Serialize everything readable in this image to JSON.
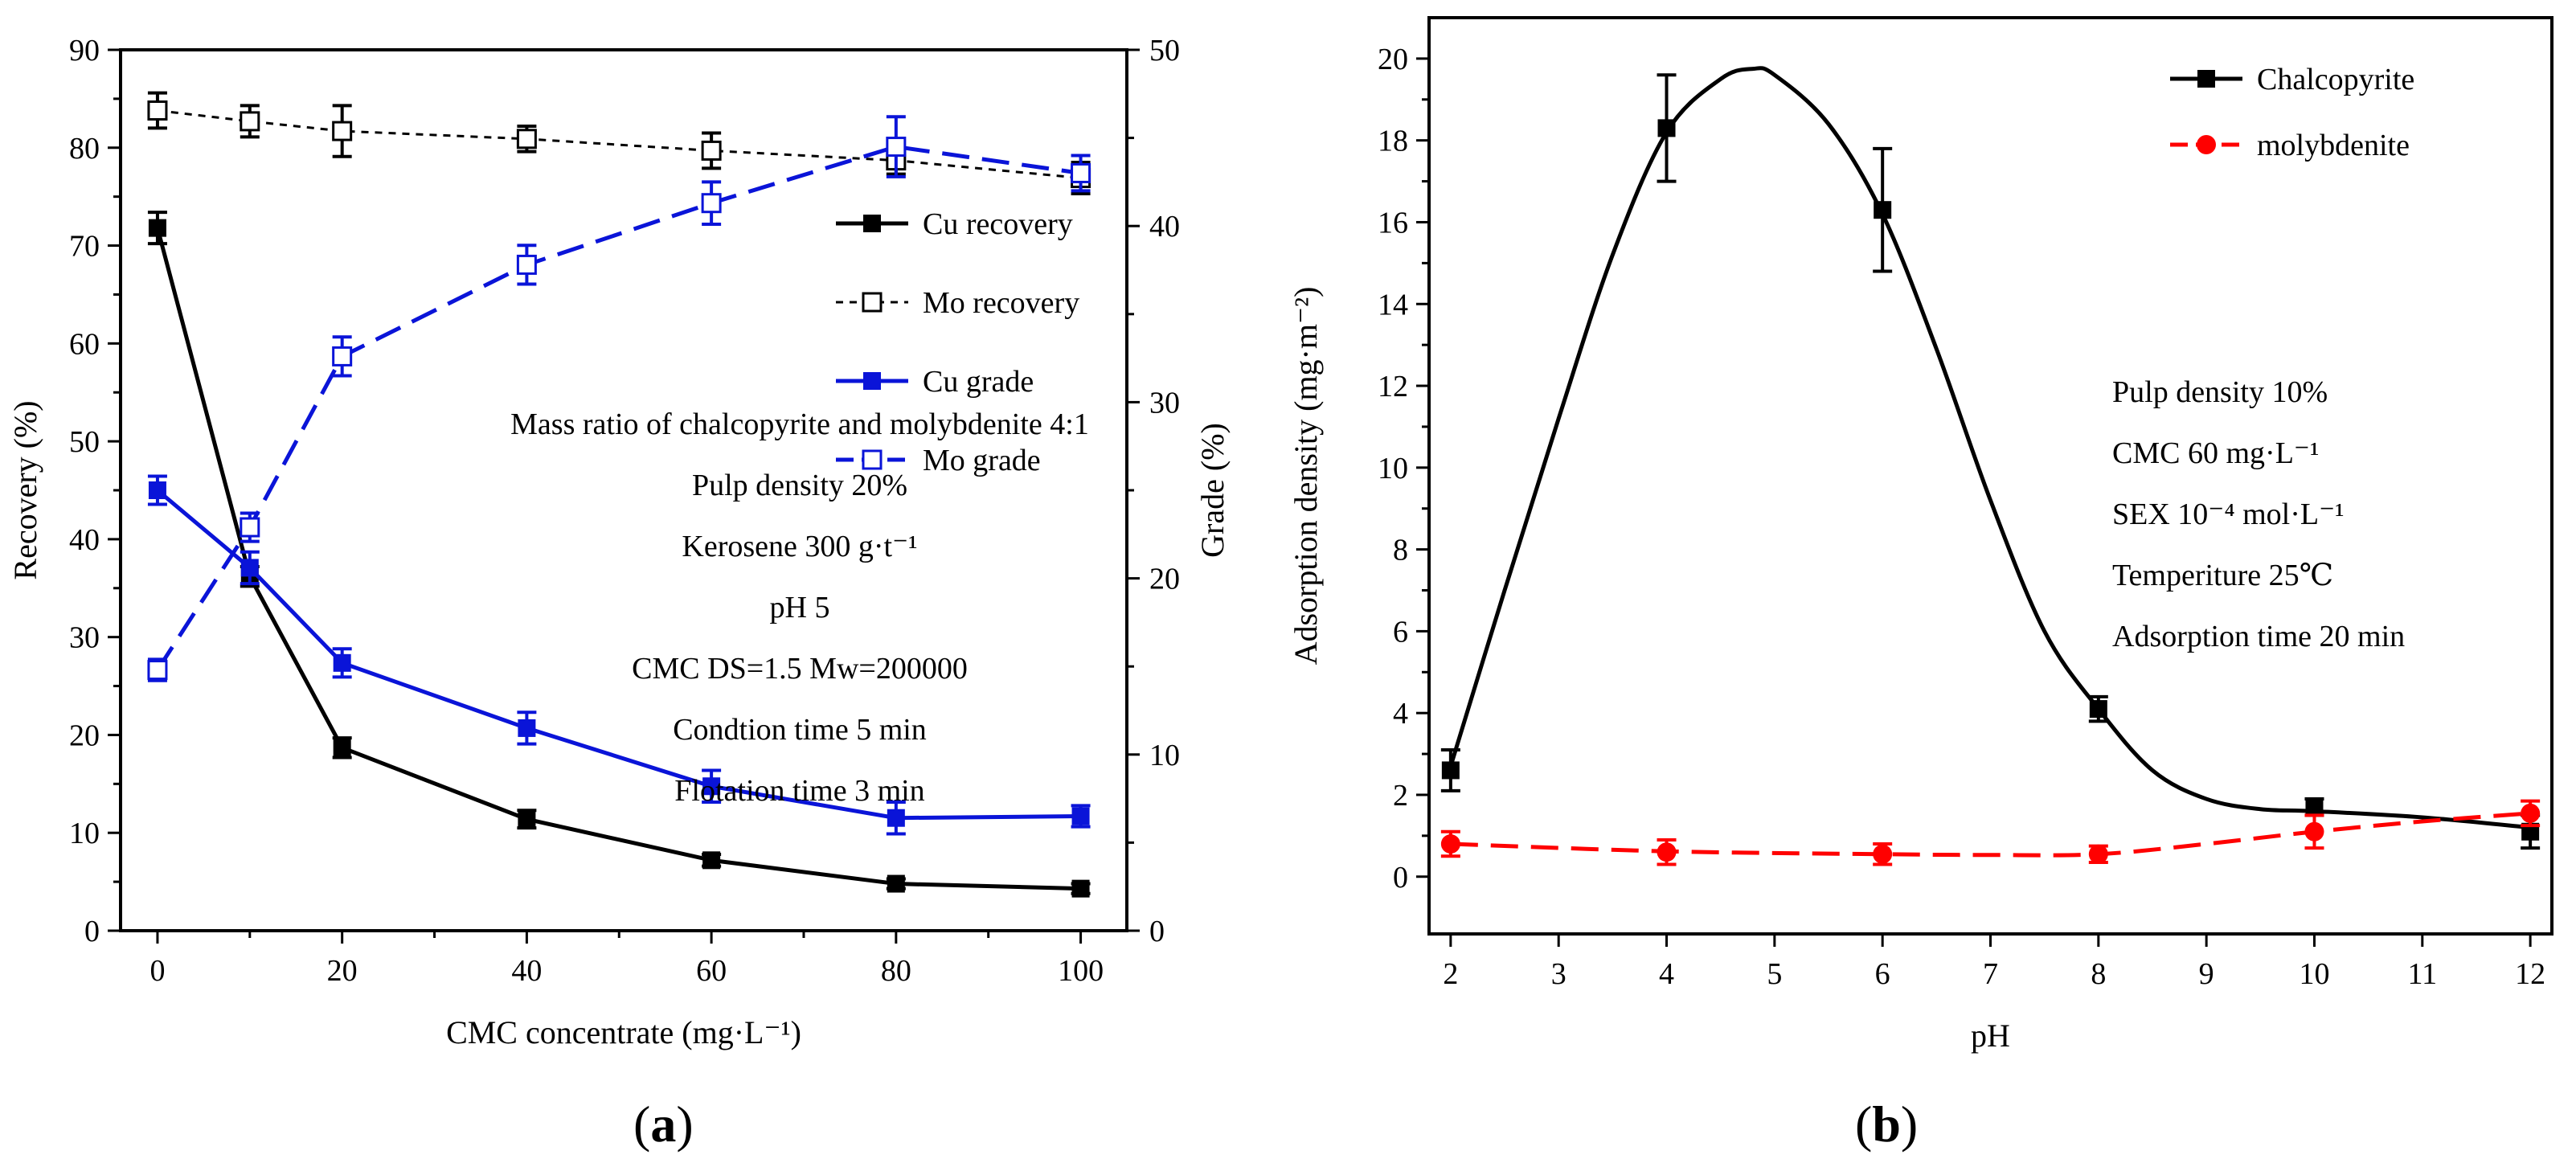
{
  "chart_data": [
    {
      "panel": "a",
      "type": "line",
      "panel_label": "a",
      "xlabel": "CMC concentrate (mg·L⁻¹)",
      "ylabel": "Recovery (%)",
      "y2label": "Grade (%)",
      "xlim": [
        -4,
        105
      ],
      "ylim": [
        0,
        90
      ],
      "y2lim": [
        0,
        50
      ],
      "xticks": [
        0,
        20,
        40,
        60,
        80,
        100
      ],
      "yticks": [
        0,
        10,
        20,
        30,
        40,
        50,
        60,
        70,
        80,
        90
      ],
      "y2ticks": [
        0,
        10,
        20,
        30,
        40,
        50
      ],
      "x": [
        0,
        10,
        20,
        40,
        60,
        80,
        100
      ],
      "series": [
        {
          "name": "Cu recovery",
          "axis": "left",
          "color": "#000000",
          "style": "solid",
          "marker": "filled-square",
          "values": [
            71.8,
            36.2,
            18.7,
            11.4,
            7.2,
            4.8,
            4.3
          ],
          "errors": [
            1.6,
            1.0,
            1.0,
            0.9,
            0.6,
            0.5,
            0.5
          ]
        },
        {
          "name": "Mo recovery",
          "axis": "left",
          "color": "#000000",
          "style": "dotted",
          "marker": "open-square",
          "values": [
            83.8,
            82.7,
            81.7,
            80.9,
            79.7,
            78.7,
            76.9
          ],
          "errors": [
            1.8,
            1.6,
            2.6,
            1.3,
            1.8,
            1.4,
            1.6
          ]
        },
        {
          "name": "Cu grade",
          "axis": "right",
          "color": "#0a14d8",
          "style": "solid",
          "marker": "filled-square",
          "values": [
            25.0,
            20.6,
            15.2,
            11.5,
            8.2,
            6.4,
            6.5
          ],
          "errors": [
            0.8,
            0.9,
            0.8,
            0.9,
            0.9,
            0.9,
            0.6
          ]
        },
        {
          "name": "Mo grade",
          "axis": "right",
          "color": "#0a14d8",
          "style": "dashed",
          "marker": "open-square",
          "values": [
            14.8,
            22.9,
            32.6,
            37.8,
            41.3,
            44.5,
            43.0
          ],
          "errors": [
            0.6,
            0.8,
            1.1,
            1.1,
            1.2,
            1.7,
            1.0
          ]
        }
      ],
      "legend_position": "right",
      "annotations": [
        "Mass ratio of chalcopyrite and molybdenite 4:1",
        "Pulp density 20%",
        "Kerosene 300 g·t⁻¹",
        "pH 5",
        "CMC DS=1.5 Mw=200000",
        "Condtion time 5 min",
        "Flotation time 3 min"
      ]
    },
    {
      "panel": "b",
      "type": "line",
      "panel_label": "b",
      "xlabel": "pH",
      "ylabel": "Adsorption density (mg·m⁻²)",
      "xlim": [
        1.8,
        12.2
      ],
      "ylim": [
        -1.4,
        21
      ],
      "xticks": [
        2,
        3,
        4,
        5,
        6,
        7,
        8,
        9,
        10,
        11,
        12
      ],
      "yticks": [
        0,
        2,
        4,
        6,
        8,
        10,
        12,
        14,
        16,
        18,
        20
      ],
      "x": [
        2,
        4,
        6,
        8,
        10,
        12
      ],
      "series": [
        {
          "name": "Chalcopyrite",
          "color": "#000000",
          "style": "solid",
          "marker": "filled-square",
          "values": [
            2.6,
            18.3,
            16.3,
            4.1,
            1.7,
            1.1
          ],
          "errors": [
            0.5,
            1.3,
            1.5,
            0.3,
            0.2,
            0.4
          ],
          "fit_curve": {
            "x": [
              2,
              2.5,
              3,
              3.5,
              4,
              4.5,
              4.8,
              5,
              5.5,
              6,
              6.5,
              7,
              7.5,
              8,
              8.5,
              9,
              9.5,
              10,
              11,
              12
            ],
            "y": [
              2.7,
              7.0,
              11.2,
              15.2,
              18.2,
              19.5,
              19.75,
              19.6,
              18.4,
              16.2,
              12.9,
              9.2,
              6.0,
              4.1,
              2.6,
              1.9,
              1.65,
              1.6,
              1.45,
              1.2
            ]
          }
        },
        {
          "name": "molybdenite",
          "color": "#ff0000",
          "style": "dashed",
          "marker": "filled-circle",
          "values": [
            0.8,
            0.6,
            0.55,
            0.55,
            1.1,
            1.55
          ],
          "errors": [
            0.3,
            0.3,
            0.25,
            0.2,
            0.4,
            0.3
          ],
          "fit_curve": {
            "x": [
              2,
              4,
              6,
              7,
              8,
              9,
              10,
              11,
              12
            ],
            "y": [
              0.8,
              0.62,
              0.55,
              0.53,
              0.55,
              0.8,
              1.1,
              1.35,
              1.55
            ]
          }
        }
      ],
      "legend_position": "top-right",
      "annotations": [
        "Pulp density 10%",
        "CMC 60 mg·L⁻¹",
        "SEX 10⁻⁴ mol·L⁻¹",
        "Temperiture 25℃",
        "Adsorption time 20 min"
      ]
    }
  ]
}
